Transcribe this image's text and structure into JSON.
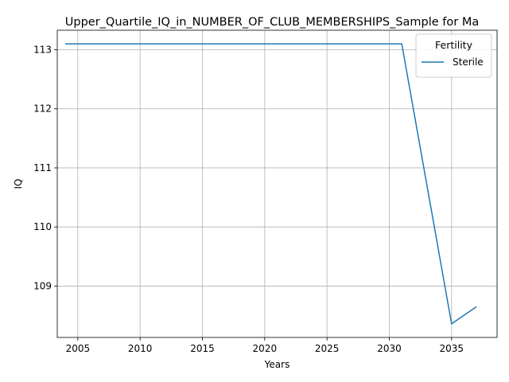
{
  "chart_data": {
    "type": "line",
    "title": "Upper_Quartile_IQ_in_NUMBER_OF_CLUB_MEMBERSHIPS_Sample for Ma",
    "xlabel": "Years",
    "ylabel": "IQ",
    "xlim": [
      2003.35,
      2038.65
    ],
    "ylim": [
      108.13,
      113.33
    ],
    "xticks": [
      2005,
      2010,
      2015,
      2020,
      2025,
      2030,
      2035
    ],
    "yticks": [
      109,
      110,
      111,
      112,
      113
    ],
    "grid": true,
    "legend": {
      "title": "Fertility",
      "placement": "top-right"
    },
    "series": [
      {
        "name": "Sterile",
        "color": "#1f77b4",
        "x": [
          2004,
          2031,
          2035,
          2037
        ],
        "y": [
          113.1,
          113.1,
          108.36,
          108.65
        ]
      }
    ]
  }
}
